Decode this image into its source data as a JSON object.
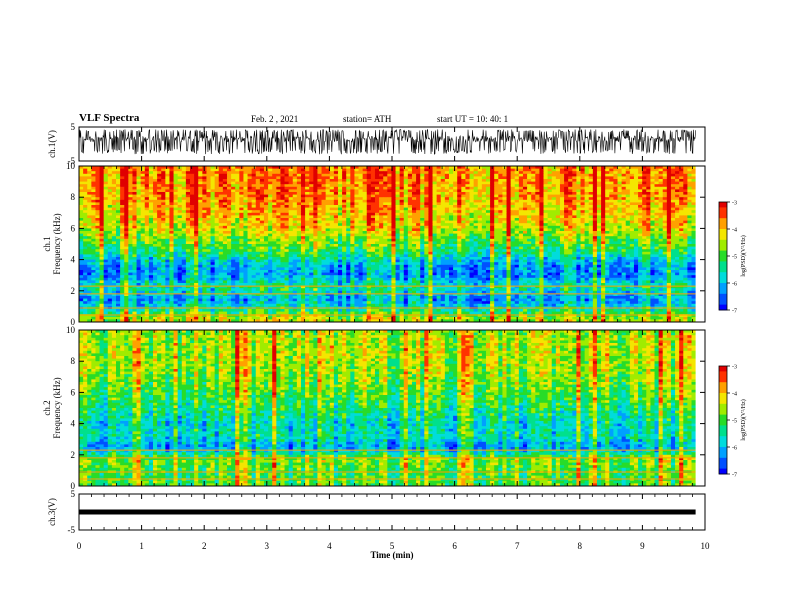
{
  "header": {
    "title": "VLF Spectra",
    "date": "Feb. 2 , 2021",
    "station": "station= ATH",
    "start_ut": "start  UT =   10: 40: 1"
  },
  "colors": {
    "palette": [
      "#0000ff",
      "#0050ff",
      "#00a0ff",
      "#00dcdc",
      "#00e08c",
      "#28dc28",
      "#a0ec00",
      "#f4e600",
      "#ffa000",
      "#ff3200",
      "#e00000"
    ]
  },
  "chart_data": [
    {
      "type": "line",
      "name": "ch1-waveform",
      "ylabel": "ch.1(V)",
      "ylim": [
        -5,
        5
      ],
      "y_ticks": [
        "5",
        "-5"
      ],
      "xlim": [
        0,
        10
      ],
      "description_values": {
        "baseline_v": 1.5,
        "typical_range_v": [
          -3,
          3.5
        ]
      }
    },
    {
      "type": "heatmap",
      "name": "ch1-spectrogram",
      "ylabel": "ch.1\nFrequency (kHz)",
      "ylim": [
        0,
        10
      ],
      "y_ticks": [
        "0",
        "2",
        "4",
        "6",
        "8",
        "10"
      ],
      "xlim": [
        0,
        10
      ],
      "data_end_min": 9.85,
      "log_psd_by_freq_khz": [
        [
          0.3,
          -4.5
        ],
        [
          1.0,
          -5.8
        ],
        [
          1.5,
          -6.2
        ],
        [
          2.2,
          -5.4
        ],
        [
          3.0,
          -6.3
        ],
        [
          3.8,
          -6.0
        ],
        [
          4.5,
          -5.2
        ],
        [
          5.2,
          -4.8
        ],
        [
          6.0,
          -4.3
        ],
        [
          7.0,
          -4.0
        ],
        [
          8.0,
          -3.8
        ],
        [
          9.0,
          -3.7
        ],
        [
          10.0,
          -3.7
        ]
      ],
      "colorbar": {
        "label": "log(PSD)(V²/Hz)",
        "range": [
          -7,
          -3
        ],
        "ticks": [
          "-3",
          "-4",
          "-5",
          "-6",
          "-7"
        ]
      }
    },
    {
      "type": "heatmap",
      "name": "ch2-spectrogram",
      "ylabel": "ch.2\nFrequency (kHz)",
      "ylim": [
        0,
        10
      ],
      "y_ticks": [
        "0",
        "2",
        "4",
        "6",
        "8",
        "10"
      ],
      "xlim": [
        0,
        10
      ],
      "data_end_min": 9.85,
      "log_psd_by_freq_khz": [
        [
          0.3,
          -5.0
        ],
        [
          1.0,
          -5.0
        ],
        [
          1.7,
          -4.7
        ],
        [
          2.5,
          -6.2
        ],
        [
          3.2,
          -5.6
        ],
        [
          4.0,
          -5.7
        ],
        [
          4.8,
          -5.4
        ],
        [
          5.5,
          -5.1
        ],
        [
          6.5,
          -4.8
        ],
        [
          7.5,
          -4.6
        ],
        [
          8.5,
          -4.5
        ],
        [
          10.0,
          -4.6
        ]
      ],
      "colorbar": {
        "label": "log(PSD)(V²/Hz)",
        "range": [
          -7,
          -3
        ],
        "ticks": [
          "-3",
          "-4",
          "-5",
          "-6",
          "-7"
        ]
      }
    },
    {
      "type": "line",
      "name": "ch3-waveform",
      "ylabel": "ch.3(V)",
      "ylim": [
        -5,
        5
      ],
      "y_ticks": [
        "5",
        "-5"
      ],
      "xlim": [
        0,
        10
      ],
      "description_values": {
        "baseline_v": 0
      }
    }
  ],
  "x_axis": {
    "label": "Time (min)",
    "ticks": [
      "0",
      "1",
      "2",
      "3",
      "4",
      "5",
      "6",
      "7",
      "8",
      "9",
      "10"
    ]
  }
}
